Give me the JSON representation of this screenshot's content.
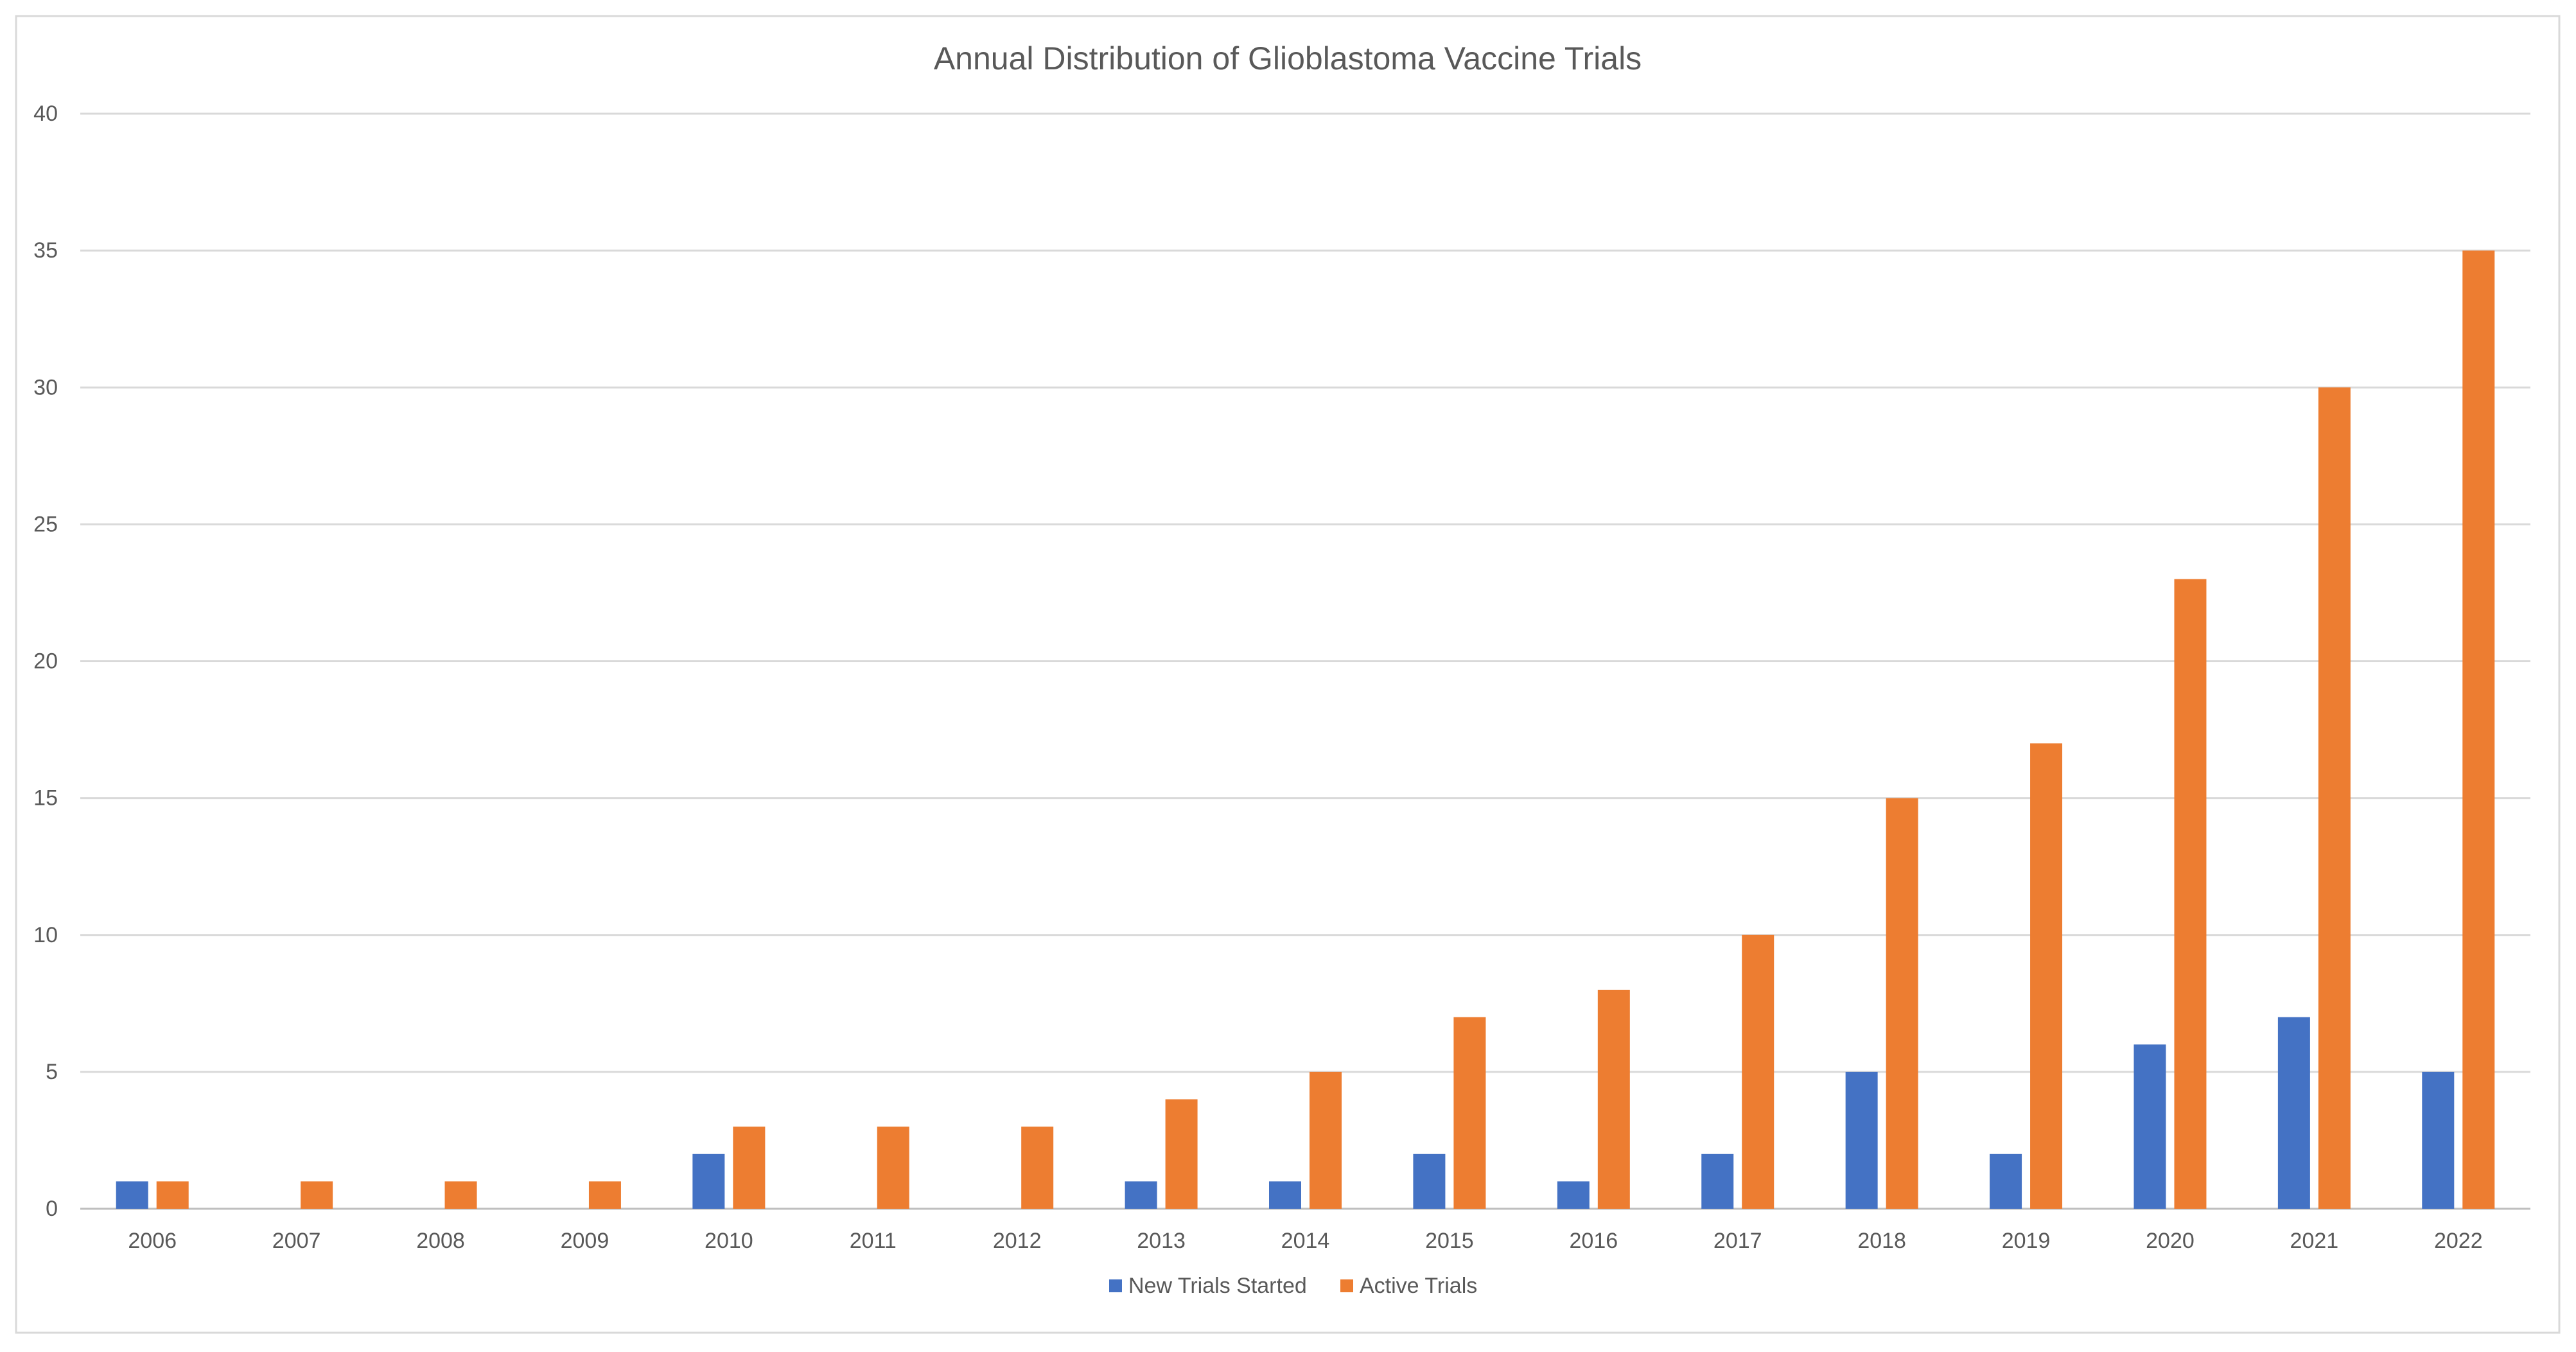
{
  "chart_data": {
    "type": "bar",
    "title": "Annual Distribution of Glioblastoma  Vaccine Trials",
    "xlabel": "",
    "ylabel": "",
    "ylim": [
      0,
      40
    ],
    "yticks": [
      0,
      5,
      10,
      15,
      20,
      25,
      30,
      35,
      40
    ],
    "grid": true,
    "legend_position": "bottom-center",
    "categories": [
      "2006",
      "2007",
      "2008",
      "2009",
      "2010",
      "2011",
      "2012",
      "2013",
      "2014",
      "2015",
      "2016",
      "2017",
      "2018",
      "2019",
      "2020",
      "2021",
      "2022"
    ],
    "series": [
      {
        "name": "New Trials Started",
        "color": "#4472C4",
        "values": [
          1,
          0,
          0,
          0,
          2,
          0,
          0,
          1,
          1,
          2,
          1,
          2,
          5,
          2,
          6,
          7,
          5
        ]
      },
      {
        "name": "Active Trials",
        "color": "#ED7D31",
        "values": [
          1,
          1,
          1,
          1,
          3,
          3,
          3,
          4,
          5,
          7,
          8,
          10,
          15,
          17,
          23,
          30,
          35
        ]
      }
    ]
  }
}
